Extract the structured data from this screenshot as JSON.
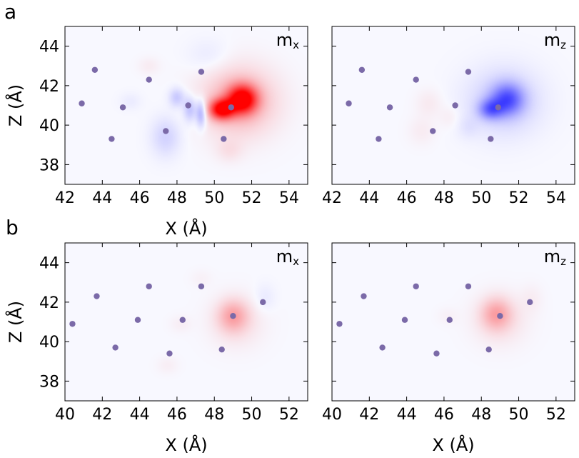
{
  "figure": {
    "rows": [
      {
        "letter": "a"
      },
      {
        "letter": "b"
      }
    ]
  },
  "chart_data": [
    {
      "type": "heatmap",
      "panel": "a",
      "component_label": {
        "base": "m",
        "sub": "x"
      },
      "xlabel": "X (Å)",
      "ylabel": "Z (Å)",
      "xlim": [
        42,
        55
      ],
      "ylim": [
        37,
        45
      ],
      "xticks": [
        42,
        44,
        46,
        48,
        50,
        52,
        54
      ],
      "yticks": [
        38,
        40,
        42,
        44
      ],
      "grid": false,
      "atoms_color": "#7b6aa8",
      "positive_color": "#ff0000",
      "negative_color": "#0000ff",
      "atoms": [
        {
          "x": 43.6,
          "z": 42.8
        },
        {
          "x": 42.9,
          "z": 41.1
        },
        {
          "x": 45.1,
          "z": 40.9
        },
        {
          "x": 44.5,
          "z": 39.3
        },
        {
          "x": 46.5,
          "z": 42.3
        },
        {
          "x": 47.4,
          "z": 39.7
        },
        {
          "x": 48.6,
          "z": 41.0
        },
        {
          "x": 49.3,
          "z": 42.7
        },
        {
          "x": 50.5,
          "z": 39.3
        },
        {
          "x": 50.9,
          "z": 40.9
        }
      ],
      "blobs": [
        {
          "x": 51.5,
          "z": 41.3,
          "amp": 1.0,
          "sx": 0.55,
          "sz": 0.5
        },
        {
          "x": 50.4,
          "z": 40.8,
          "amp": 0.95,
          "sx": 0.45,
          "sz": 0.35
        },
        {
          "x": 51.3,
          "z": 41.2,
          "amp": 0.3,
          "sx": 1.4,
          "sz": 1.2
        },
        {
          "x": 49.3,
          "z": 40.6,
          "amp": -0.35,
          "sx": 0.2,
          "sz": 0.5
        },
        {
          "x": 48.7,
          "z": 40.8,
          "amp": -0.25,
          "sx": 0.25,
          "sz": 0.45
        },
        {
          "x": 48.0,
          "z": 41.4,
          "amp": -0.2,
          "sx": 0.3,
          "sz": 0.35
        },
        {
          "x": 47.4,
          "z": 39.4,
          "amp": -0.15,
          "sx": 0.55,
          "sz": 0.7
        },
        {
          "x": 49.7,
          "z": 43.5,
          "amp": -0.06,
          "sx": 0.8,
          "sz": 0.6
        },
        {
          "x": 50.8,
          "z": 38.7,
          "amp": 0.08,
          "sx": 0.5,
          "sz": 0.4
        },
        {
          "x": 46.5,
          "z": 43.0,
          "amp": 0.05,
          "sx": 0.4,
          "sz": 0.3
        },
        {
          "x": 45.5,
          "z": 41.2,
          "amp": -0.05,
          "sx": 0.4,
          "sz": 0.3
        }
      ]
    },
    {
      "type": "heatmap",
      "panel": "a",
      "component_label": {
        "base": "m",
        "sub": "z"
      },
      "xlabel": "",
      "ylabel": "",
      "xlim": [
        42,
        55
      ],
      "ylim": [
        37,
        45
      ],
      "xticks": [
        42,
        44,
        46,
        48,
        50,
        52,
        54
      ],
      "yticks": [],
      "grid": false,
      "atoms_color": "#7b6aa8",
      "positive_color": "#ff0000",
      "negative_color": "#0000ff",
      "atoms": [
        {
          "x": 43.6,
          "z": 42.8
        },
        {
          "x": 42.9,
          "z": 41.1
        },
        {
          "x": 45.1,
          "z": 40.9
        },
        {
          "x": 44.5,
          "z": 39.3
        },
        {
          "x": 46.5,
          "z": 42.3
        },
        {
          "x": 47.4,
          "z": 39.7
        },
        {
          "x": 48.6,
          "z": 41.0
        },
        {
          "x": 49.3,
          "z": 42.7
        },
        {
          "x": 50.5,
          "z": 39.3
        },
        {
          "x": 50.9,
          "z": 40.9
        }
      ],
      "blobs": [
        {
          "x": 51.4,
          "z": 41.3,
          "amp": -0.55,
          "sx": 0.6,
          "sz": 0.55
        },
        {
          "x": 50.5,
          "z": 40.8,
          "amp": -0.45,
          "sx": 0.45,
          "sz": 0.35
        },
        {
          "x": 51.2,
          "z": 41.2,
          "amp": -0.18,
          "sx": 1.4,
          "sz": 1.2
        },
        {
          "x": 47.2,
          "z": 41.1,
          "amp": 0.06,
          "sx": 0.5,
          "sz": 0.5
        },
        {
          "x": 48.3,
          "z": 40.4,
          "amp": 0.05,
          "sx": 0.4,
          "sz": 0.4
        },
        {
          "x": 46.8,
          "z": 39.7,
          "amp": 0.05,
          "sx": 0.5,
          "sz": 0.5
        },
        {
          "x": 49.3,
          "z": 39.9,
          "amp": -0.06,
          "sx": 0.4,
          "sz": 0.4
        }
      ]
    },
    {
      "type": "heatmap",
      "panel": "b",
      "component_label": {
        "base": "m",
        "sub": "x"
      },
      "xlabel": "X (Å)",
      "ylabel": "Z (Å)",
      "xlim": [
        40,
        53
      ],
      "ylim": [
        37,
        45
      ],
      "xticks": [
        40,
        42,
        44,
        46,
        48,
        50,
        52
      ],
      "yticks": [
        38,
        40,
        42,
        44
      ],
      "grid": false,
      "atoms_color": "#7b6aa8",
      "positive_color": "#ff0000",
      "negative_color": "#0000ff",
      "atoms": [
        {
          "x": 41.7,
          "z": 42.3
        },
        {
          "x": 40.4,
          "z": 40.9
        },
        {
          "x": 42.7,
          "z": 39.7
        },
        {
          "x": 43.9,
          "z": 41.1
        },
        {
          "x": 44.5,
          "z": 42.8
        },
        {
          "x": 45.6,
          "z": 39.4
        },
        {
          "x": 46.3,
          "z": 41.1
        },
        {
          "x": 47.3,
          "z": 42.8
        },
        {
          "x": 48.4,
          "z": 39.6
        },
        {
          "x": 49.0,
          "z": 41.3
        },
        {
          "x": 50.6,
          "z": 42.0
        }
      ],
      "blobs": [
        {
          "x": 49.0,
          "z": 41.3,
          "amp": 0.28,
          "sx": 0.55,
          "sz": 0.55
        },
        {
          "x": 49.2,
          "z": 41.0,
          "amp": 0.1,
          "sx": 1.0,
          "sz": 0.9
        },
        {
          "x": 50.7,
          "z": 42.2,
          "amp": -0.06,
          "sx": 0.4,
          "sz": 0.5
        },
        {
          "x": 46.2,
          "z": 40.9,
          "amp": 0.04,
          "sx": 0.4,
          "sz": 0.3
        },
        {
          "x": 45.5,
          "z": 38.8,
          "amp": 0.04,
          "sx": 0.4,
          "sz": 0.3
        },
        {
          "x": 47.3,
          "z": 43.2,
          "amp": 0.03,
          "sx": 0.4,
          "sz": 0.3
        }
      ]
    },
    {
      "type": "heatmap",
      "panel": "b",
      "component_label": {
        "base": "m",
        "sub": "z"
      },
      "xlabel": "X (Å)",
      "ylabel": "",
      "xlim": [
        40,
        53
      ],
      "ylim": [
        37,
        45
      ],
      "xticks": [
        40,
        42,
        44,
        46,
        48,
        50,
        52
      ],
      "yticks": [],
      "grid": false,
      "atoms_color": "#7b6aa8",
      "positive_color": "#ff0000",
      "negative_color": "#0000ff",
      "atoms": [
        {
          "x": 41.7,
          "z": 42.3
        },
        {
          "x": 40.4,
          "z": 40.9
        },
        {
          "x": 42.7,
          "z": 39.7
        },
        {
          "x": 43.9,
          "z": 41.1
        },
        {
          "x": 44.5,
          "z": 42.8
        },
        {
          "x": 45.6,
          "z": 39.4
        },
        {
          "x": 46.3,
          "z": 41.1
        },
        {
          "x": 47.3,
          "z": 42.8
        },
        {
          "x": 48.4,
          "z": 39.6
        },
        {
          "x": 49.0,
          "z": 41.3
        },
        {
          "x": 50.6,
          "z": 42.0
        }
      ],
      "blobs": [
        {
          "x": 48.8,
          "z": 41.4,
          "amp": 0.28,
          "sx": 0.55,
          "sz": 0.55
        },
        {
          "x": 49.0,
          "z": 41.1,
          "amp": 0.1,
          "sx": 1.0,
          "sz": 0.9
        },
        {
          "x": 50.7,
          "z": 42.2,
          "amp": 0.04,
          "sx": 0.4,
          "sz": 0.5
        },
        {
          "x": 46.2,
          "z": 41.3,
          "amp": 0.03,
          "sx": 0.4,
          "sz": 0.3
        }
      ]
    }
  ]
}
